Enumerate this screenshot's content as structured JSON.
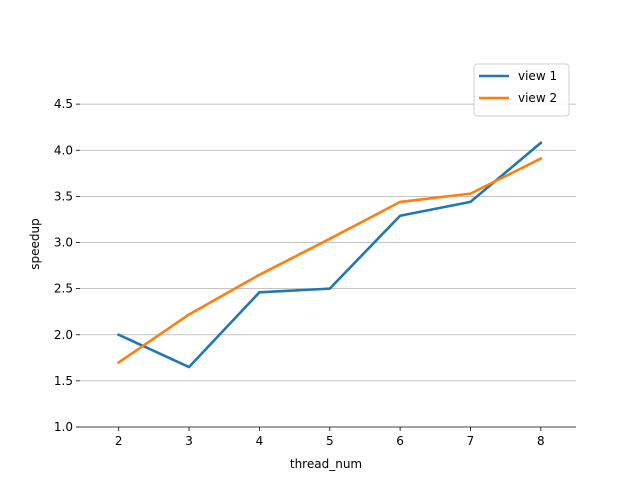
{
  "chart_data": {
    "type": "line",
    "xlabel": "thread_num",
    "ylabel": "speedup",
    "x": [
      2,
      3,
      4,
      5,
      6,
      7,
      8
    ],
    "xticks": [
      "2",
      "3",
      "4",
      "5",
      "6",
      "7",
      "8"
    ],
    "xlim": [
      1.45,
      8.5
    ],
    "ylim": [
      1.0,
      5.0
    ],
    "yticks": [
      "1.0",
      "1.5",
      "2.0",
      "2.5",
      "3.0",
      "3.5",
      "4.0",
      "4.5"
    ],
    "grid": "horizontal",
    "legend_position": "top-right",
    "series": [
      {
        "name": "view 1",
        "color": "#1f77b4",
        "values": [
          2.0,
          1.65,
          2.46,
          2.5,
          3.29,
          3.44,
          4.08
        ]
      },
      {
        "name": "view 2",
        "color": "#ff7f0e",
        "values": [
          1.7,
          2.22,
          2.65,
          3.04,
          3.44,
          3.53,
          3.91
        ]
      }
    ]
  }
}
